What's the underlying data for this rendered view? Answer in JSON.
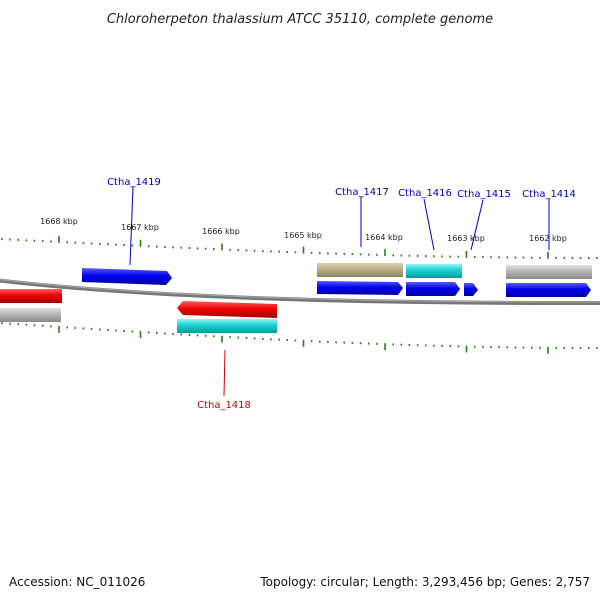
{
  "title": "Chloroherpeton thalassium ATCC 35110, complete genome",
  "footer": {
    "accession": "Accession: NC_011026",
    "topology": "Topology: circular; Length: 3,293,456 bp; Genes: 2,757"
  },
  "colors": {
    "backbone": "#777777",
    "tick": "#2e7d1c",
    "forward": "#0000ee",
    "reverse": "#ee0000",
    "rna": "#b9b08a",
    "cds_cyan": "#19cfcf",
    "pseudo": "#b5b5b5",
    "label_forward": "#0000bb",
    "label_reverse": "#cc0000"
  },
  "scale_labels": [
    "1668 kbp",
    "1667 kbp",
    "1666 kbp",
    "1665 kbp",
    "1664 kbp",
    "1663 kbp",
    "1662 kbp"
  ],
  "gene_labels": [
    {
      "text": "Ctha_1419",
      "strand": "forward"
    },
    {
      "text": "Ctha_1417",
      "strand": "forward"
    },
    {
      "text": "Ctha_1416",
      "strand": "forward"
    },
    {
      "text": "Ctha_1415",
      "strand": "forward"
    },
    {
      "text": "Ctha_1414",
      "strand": "forward"
    },
    {
      "text": "Ctha_1418",
      "strand": "reverse"
    }
  ]
}
